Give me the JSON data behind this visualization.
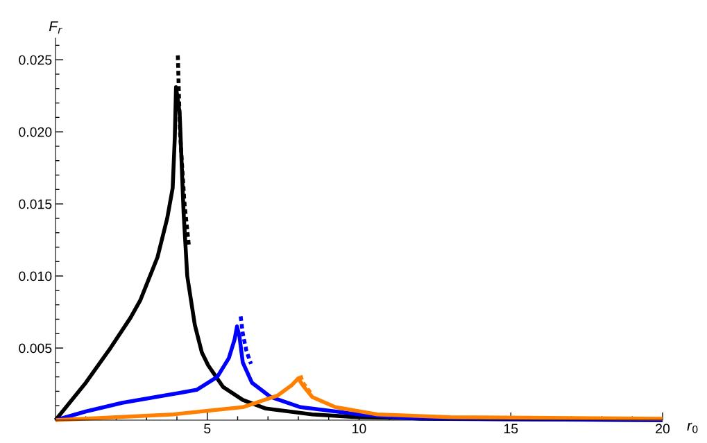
{
  "chart_data": {
    "type": "line",
    "xlabel": "r$_{0}$",
    "ylabel": "F$_{r}$",
    "xlim": [
      0,
      20
    ],
    "ylim": [
      0,
      0.0265
    ],
    "xticks": [
      {
        "value": 1,
        "label": null
      },
      {
        "value": 2,
        "label": null
      },
      {
        "value": 3,
        "label": null
      },
      {
        "value": 4,
        "label": null
      },
      5,
      {
        "value": 6,
        "label": null
      },
      {
        "value": 7,
        "label": null
      },
      {
        "value": 8,
        "label": null
      },
      {
        "value": 9,
        "label": null
      },
      10,
      {
        "value": 11,
        "label": null
      },
      {
        "value": 12,
        "label": null
      },
      {
        "value": 13,
        "label": null
      },
      {
        "value": 14,
        "label": null
      },
      15,
      {
        "value": 16,
        "label": null
      },
      {
        "value": 17,
        "label": null
      },
      {
        "value": 18,
        "label": null
      },
      {
        "value": 19,
        "label": null
      },
      20
    ],
    "yticks": [
      {
        "value": 0.001,
        "label": null
      },
      {
        "value": 0.002,
        "label": null
      },
      {
        "value": 0.003,
        "label": null
      },
      {
        "value": 0.004,
        "label": null
      },
      {
        "value": 0.005,
        "label": "0.005"
      },
      {
        "value": 0.006,
        "label": null
      },
      {
        "value": 0.007,
        "label": null
      },
      {
        "value": 0.008,
        "label": null
      },
      {
        "value": 0.009,
        "label": null
      },
      {
        "value": 0.01,
        "label": "0.010"
      },
      {
        "value": 0.011,
        "label": null
      },
      {
        "value": 0.012,
        "label": null
      },
      {
        "value": 0.013,
        "label": null
      },
      {
        "value": 0.014,
        "label": null
      },
      {
        "value": 0.015,
        "label": "0.015"
      },
      {
        "value": 0.016,
        "label": null
      },
      {
        "value": 0.017,
        "label": null
      },
      {
        "value": 0.018,
        "label": null
      },
      {
        "value": 0.019,
        "label": null
      },
      {
        "value": 0.02,
        "label": "0.020"
      },
      {
        "value": 0.021,
        "label": null
      },
      {
        "value": 0.022,
        "label": null
      },
      {
        "value": 0.023,
        "label": null
      },
      {
        "value": 0.024,
        "label": null
      },
      {
        "value": 0.025,
        "label": "0.025"
      },
      {
        "value": 0.026,
        "label": null
      }
    ],
    "grid": false,
    "legend": false,
    "series": [
      {
        "color": "#000000",
        "line_style": "solid",
        "x": [
          0,
          1.0,
          1.81,
          2.47,
          2.79,
          3.36,
          3.68,
          3.86,
          3.93,
          3.97,
          4.09,
          4.22,
          4.34,
          4.59,
          4.82,
          5.03,
          5.52,
          6.17,
          6.93,
          8.46,
          10,
          13,
          20
        ],
        "values": [
          0,
          0.0026,
          0.005,
          0.0071,
          0.0083,
          0.0113,
          0.014,
          0.0161,
          0.0196,
          0.0231,
          0.0213,
          0.0144,
          0.01,
          0.0066,
          0.0047,
          0.0038,
          0.0023,
          0.0014,
          0.0008,
          0.0004,
          0.0002,
          0.0001,
          0
        ]
      },
      {
        "color": "#000000",
        "line_style": "dotted",
        "x": [
          4.03,
          4.1,
          4.25,
          4.4
        ],
        "values": [
          0.0253,
          0.02,
          0.015,
          0.012
        ]
      },
      {
        "color": "#0000ff",
        "line_style": "solid",
        "x": [
          0,
          1.0,
          2.2,
          3.85,
          4.65,
          5.33,
          5.71,
          5.9,
          5.98,
          6.06,
          6.17,
          6.47,
          7.09,
          8.07,
          9.99,
          12,
          20
        ],
        "values": [
          0,
          0.0006,
          0.0012,
          0.0018,
          0.0021,
          0.003,
          0.0043,
          0.0056,
          0.0065,
          0.0058,
          0.004,
          0.0026,
          0.0016,
          0.0009,
          0.0004,
          0.0001,
          0
        ]
      },
      {
        "color": "#0000ff",
        "line_style": "dotted",
        "x": [
          6.1,
          6.17,
          6.29,
          6.44
        ],
        "values": [
          0.0072,
          0.006,
          0.0048,
          0.0039
        ]
      },
      {
        "color": "#ff8000",
        "line_style": "solid",
        "x": [
          0,
          3.89,
          6.17,
          7.31,
          7.77,
          8.0,
          8.15,
          8.46,
          9.22,
          10.6,
          13,
          20
        ],
        "values": [
          0,
          0.0004,
          0.0009,
          0.0017,
          0.0024,
          0.0029,
          0.0024,
          0.0016,
          0.0009,
          0.0004,
          0.0002,
          0.0001
        ]
      },
      {
        "color": "#ff8000",
        "line_style": "dotted",
        "x": [
          8.07,
          8.15,
          8.4
        ],
        "values": [
          0.0031,
          0.0026,
          0.0019
        ]
      }
    ]
  }
}
